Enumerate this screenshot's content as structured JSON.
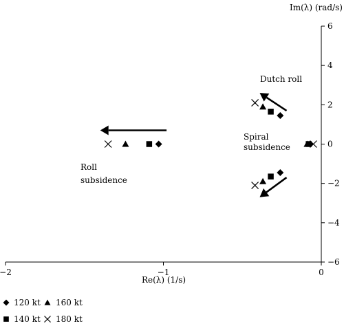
{
  "chart_data": {
    "type": "scatter",
    "title": "",
    "xlabel": "Re(λ) (1/s)",
    "ylabel": "Im(λ) (rad/s)",
    "xlim": [
      -2,
      0
    ],
    "ylim": [
      -6,
      6
    ],
    "xticks": [
      -2,
      -1,
      0
    ],
    "yticks": [
      6,
      4,
      2,
      0,
      -2,
      -4,
      -6
    ],
    "xtick_labels": [
      "−2",
      "−1",
      "0"
    ],
    "ytick_labels": [
      "6",
      "4",
      "2",
      "0",
      "−2",
      "−4",
      "−6"
    ],
    "grid": false,
    "legend_position": "bottom-left",
    "series": [
      {
        "name": "120 kt",
        "marker": "diamond",
        "points": [
          [
            -1.03,
            0
          ],
          [
            -0.26,
            1.45
          ],
          [
            -0.26,
            -1.45
          ],
          [
            -0.07,
            0
          ]
        ]
      },
      {
        "name": "140 kt",
        "marker": "square",
        "points": [
          [
            -1.09,
            0
          ],
          [
            -0.32,
            1.65
          ],
          [
            -0.32,
            -1.65
          ],
          [
            -0.08,
            0
          ]
        ]
      },
      {
        "name": "160 kt",
        "marker": "triangle",
        "points": [
          [
            -1.24,
            0
          ],
          [
            -0.37,
            1.9
          ],
          [
            -0.37,
            -1.9
          ],
          [
            -0.09,
            0
          ]
        ]
      },
      {
        "name": "180 kt",
        "marker": "x",
        "points": [
          [
            -1.35,
            0
          ],
          [
            -0.42,
            2.1
          ],
          [
            -0.42,
            -2.1
          ],
          [
            -0.05,
            0
          ]
        ]
      }
    ],
    "annotations": [
      {
        "id": "dutch_roll",
        "text": "Dutch roll"
      },
      {
        "id": "spiral",
        "lines": [
          "Spiral",
          "subsidence"
        ]
      },
      {
        "id": "roll",
        "lines": [
          "Roll",
          "subsidence"
        ]
      }
    ],
    "arrows": [
      {
        "id": "roll-arrow",
        "from": [
          -0.98,
          0.7
        ],
        "to": [
          -1.4,
          0.7
        ]
      },
      {
        "id": "dutch-upper-arrow",
        "from": [
          -0.22,
          1.7
        ],
        "to": [
          -0.39,
          2.6
        ]
      },
      {
        "id": "dutch-lower-arrow",
        "from": [
          -0.22,
          -1.7
        ],
        "to": [
          -0.39,
          -2.7
        ]
      }
    ]
  }
}
